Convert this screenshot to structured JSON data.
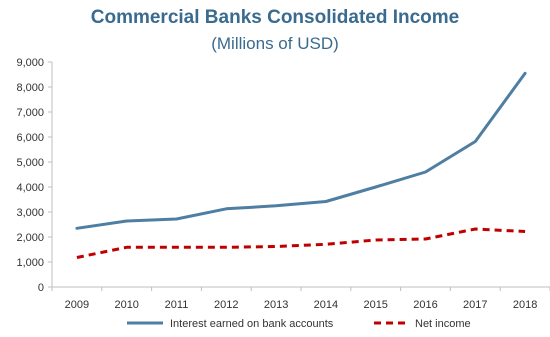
{
  "chart_data": {
    "type": "line",
    "title": "Commercial Banks Consolidated Income",
    "subtitle": "(Millions of USD)",
    "xlabel": "",
    "ylabel": "",
    "categories": [
      "2009",
      "2010",
      "2011",
      "2012",
      "2013",
      "2014",
      "2015",
      "2016",
      "2017",
      "2018"
    ],
    "yticks": [
      "0",
      "1,000",
      "2,000",
      "3,000",
      "4,000",
      "5,000",
      "6,000",
      "7,000",
      "8,000",
      "9,000"
    ],
    "ylim": [
      0,
      9000
    ],
    "grid": false,
    "legend_position": "bottom",
    "series": [
      {
        "name": "Interest earned on bank accounts",
        "color": "#4f7ea3",
        "style": "solid",
        "values": [
          2350,
          2640,
          2720,
          3130,
          3250,
          3420,
          4000,
          4600,
          5820,
          8550
        ]
      },
      {
        "name": "Net income",
        "color": "#c00000",
        "style": "dashed",
        "values": [
          1180,
          1590,
          1590,
          1590,
          1620,
          1710,
          1880,
          1920,
          2320,
          2220
        ]
      }
    ]
  }
}
